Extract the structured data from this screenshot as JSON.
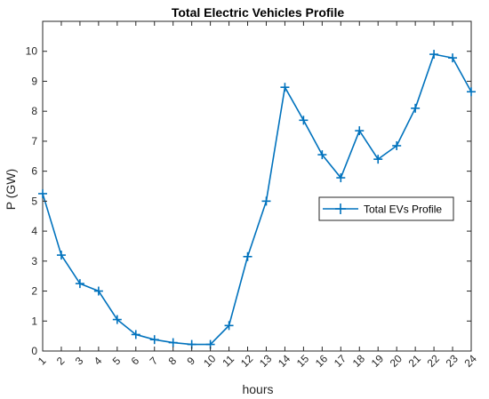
{
  "chart_data": {
    "type": "line",
    "title": "Total Electric Vehicles Profile",
    "xlabel": "hours",
    "ylabel": "P (GW)",
    "x": [
      1,
      2,
      3,
      4,
      5,
      6,
      7,
      8,
      9,
      10,
      11,
      12,
      13,
      14,
      15,
      16,
      17,
      18,
      19,
      20,
      21,
      22,
      23,
      24
    ],
    "xlim": [
      1,
      24
    ],
    "ylim": [
      0,
      11
    ],
    "yticks": [
      0,
      1,
      2,
      3,
      4,
      5,
      6,
      7,
      8,
      9,
      10
    ],
    "marker": "+",
    "grid": false,
    "legend_position": "middle-right",
    "series": [
      {
        "name": "Total EVs Profile",
        "color": "#0072BD",
        "values": [
          5.25,
          3.2,
          2.25,
          2.0,
          1.05,
          0.55,
          0.38,
          0.28,
          0.22,
          0.22,
          0.85,
          3.15,
          5.0,
          8.8,
          7.7,
          6.55,
          5.78,
          7.35,
          6.4,
          6.85,
          8.1,
          9.9,
          9.78,
          8.65
        ]
      }
    ]
  }
}
